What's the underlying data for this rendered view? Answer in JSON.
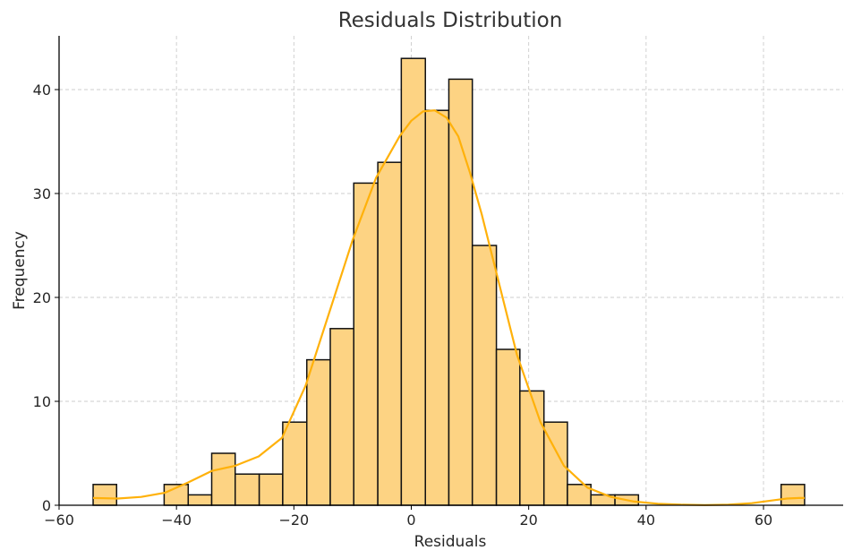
{
  "chart_data": {
    "type": "bar",
    "title": "Residuals Distribution",
    "xlabel": "Residuals",
    "ylabel": "Frequency",
    "xlim": [
      -60,
      74
    ],
    "ylim": [
      0,
      45
    ],
    "xticks": [
      -60,
      -40,
      -20,
      0,
      20,
      40,
      60
    ],
    "xtick_labels": [
      "−60",
      "−40",
      "−20",
      "0",
      "20",
      "40",
      "60"
    ],
    "yticks": [
      0,
      10,
      20,
      30,
      40
    ],
    "ytick_labels": [
      "0",
      "10",
      "20",
      "30",
      "40"
    ],
    "grid": true,
    "bins": [
      {
        "x0": -54.2,
        "x1": -50.2,
        "count": 2
      },
      {
        "x0": -50.2,
        "x1": -46.1,
        "count": 0
      },
      {
        "x0": -46.1,
        "x1": -42.1,
        "count": 0
      },
      {
        "x0": -42.1,
        "x1": -38.0,
        "count": 2
      },
      {
        "x0": -38.0,
        "x1": -34.0,
        "count": 1
      },
      {
        "x0": -34.0,
        "x1": -30.0,
        "count": 5
      },
      {
        "x0": -30.0,
        "x1": -25.9,
        "count": 3
      },
      {
        "x0": -25.9,
        "x1": -21.9,
        "count": 3
      },
      {
        "x0": -21.9,
        "x1": -17.8,
        "count": 8
      },
      {
        "x0": -17.8,
        "x1": -13.8,
        "count": 14
      },
      {
        "x0": -13.8,
        "x1": -9.8,
        "count": 17
      },
      {
        "x0": -9.8,
        "x1": -5.7,
        "count": 31
      },
      {
        "x0": -5.7,
        "x1": -1.7,
        "count": 33
      },
      {
        "x0": -1.7,
        "x1": 2.4,
        "count": 43
      },
      {
        "x0": 2.4,
        "x1": 6.4,
        "count": 38
      },
      {
        "x0": 6.4,
        "x1": 10.4,
        "count": 41
      },
      {
        "x0": 10.4,
        "x1": 14.5,
        "count": 25
      },
      {
        "x0": 14.5,
        "x1": 18.5,
        "count": 15
      },
      {
        "x0": 18.5,
        "x1": 22.6,
        "count": 11
      },
      {
        "x0": 22.6,
        "x1": 26.6,
        "count": 8
      },
      {
        "x0": 26.6,
        "x1": 30.6,
        "count": 2
      },
      {
        "x0": 30.6,
        "x1": 34.7,
        "count": 1
      },
      {
        "x0": 34.7,
        "x1": 38.7,
        "count": 1
      },
      {
        "x0": 38.7,
        "x1": 42.8,
        "count": 0
      },
      {
        "x0": 42.8,
        "x1": 46.8,
        "count": 0
      },
      {
        "x0": 46.8,
        "x1": 50.8,
        "count": 0
      },
      {
        "x0": 50.8,
        "x1": 54.9,
        "count": 0
      },
      {
        "x0": 54.9,
        "x1": 58.9,
        "count": 0
      },
      {
        "x0": 58.9,
        "x1": 63.0,
        "count": 0
      },
      {
        "x0": 63.0,
        "x1": 67.0,
        "count": 2
      }
    ],
    "kde": {
      "x": [
        -54.2,
        -50,
        -46,
        -42,
        -38,
        -34,
        -30,
        -26,
        -22,
        -18,
        -14,
        -10,
        -6,
        -2,
        0,
        2,
        4,
        6,
        8,
        10,
        12,
        14,
        18,
        22,
        26,
        30,
        34,
        38,
        42,
        46,
        50,
        54,
        58,
        62,
        64,
        66,
        67
      ],
      "y": [
        0.7,
        0.65,
        0.8,
        1.2,
        2.2,
        3.3,
        3.8,
        4.7,
        6.5,
        11.5,
        18.5,
        25.5,
        31.5,
        35.5,
        37.0,
        37.9,
        38.0,
        37.3,
        35.5,
        32.0,
        28.0,
        23.5,
        14.5,
        8.0,
        3.8,
        1.7,
        0.8,
        0.35,
        0.15,
        0.05,
        0.02,
        0.05,
        0.2,
        0.5,
        0.65,
        0.7,
        0.7
      ]
    },
    "colors": {
      "bar_fill": "#fdd383",
      "bar_edge": "#111111",
      "kde_line": "#ffb10a",
      "grid": "#cccccc",
      "axis": "#000000"
    }
  }
}
